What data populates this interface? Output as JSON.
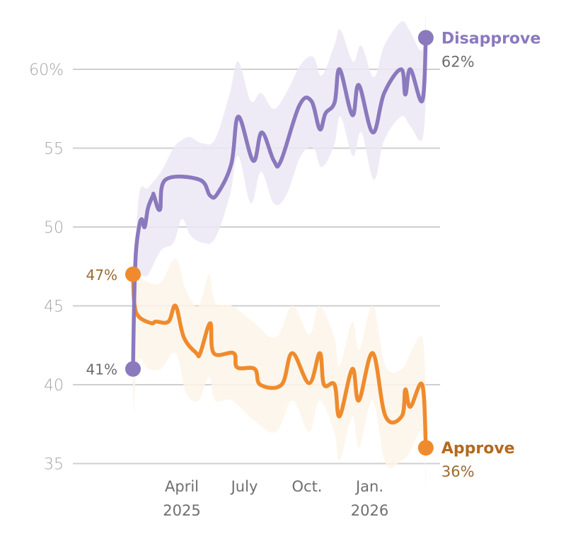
{
  "chart_data": {
    "type": "line",
    "title": "",
    "xlabel": "",
    "ylabel": "",
    "ylim": [
      35,
      63
    ],
    "y_ticks": [
      {
        "value": 60,
        "label": "60%"
      },
      {
        "value": 55,
        "label": "55"
      },
      {
        "value": 50,
        "label": "50"
      },
      {
        "value": 45,
        "label": "45"
      },
      {
        "value": 40,
        "label": "40"
      },
      {
        "value": 35,
        "label": "35"
      }
    ],
    "x_unit": "months since Jan. 2025",
    "xlim": [
      0.4,
      15.2
    ],
    "x_ticks": [
      {
        "value": 3,
        "label": "April",
        "sublabel": "2025"
      },
      {
        "value": 6,
        "label": "July",
        "sublabel": ""
      },
      {
        "value": 9,
        "label": "Oct.",
        "sublabel": ""
      },
      {
        "value": 12,
        "label": "Jan.",
        "sublabel": "2026"
      }
    ],
    "grid": true,
    "legend": "direct labels at line ends (right)",
    "series": [
      {
        "name": "Disapprove",
        "end_label": "62%",
        "start_label": "41%",
        "color": "#8b79be",
        "band_color": "#ece8f5",
        "points": [
          [
            0.66,
            41.0
          ],
          [
            0.72,
            45.5
          ],
          [
            0.8,
            48.4
          ],
          [
            0.95,
            50.0
          ],
          [
            1.08,
            50.5
          ],
          [
            1.22,
            50.0
          ],
          [
            1.38,
            51.2
          ],
          [
            1.62,
            52.0
          ],
          [
            1.66,
            52.0
          ],
          [
            1.95,
            51.1
          ],
          [
            2.22,
            53.0
          ],
          [
            3.85,
            53.0
          ],
          [
            4.35,
            52.0
          ],
          [
            4.7,
            52.1
          ],
          [
            5.37,
            54.0
          ],
          [
            5.71,
            57.0
          ],
          [
            6.42,
            54.2
          ],
          [
            6.83,
            56.0
          ],
          [
            7.41,
            54.2
          ],
          [
            7.75,
            54.2
          ],
          [
            8.63,
            57.7
          ],
          [
            9.2,
            58.0
          ],
          [
            9.61,
            56.2
          ],
          [
            9.88,
            57.2
          ],
          [
            10.32,
            57.9
          ],
          [
            10.56,
            60.0
          ],
          [
            11.17,
            57.1
          ],
          [
            11.48,
            59.0
          ],
          [
            12.15,
            56.0
          ],
          [
            12.7,
            58.5
          ],
          [
            13.51,
            60.0
          ],
          [
            13.71,
            58.4
          ],
          [
            13.95,
            60.0
          ],
          [
            14.52,
            58.0
          ],
          [
            14.69,
            62.0
          ]
        ],
        "band": [
          [
            0.66,
            38.5,
            42.0
          ],
          [
            0.9,
            46.0,
            51.5
          ],
          [
            1.4,
            47.0,
            52.5
          ],
          [
            2.0,
            48.5,
            53.5
          ],
          [
            2.6,
            49.0,
            55.0
          ],
          [
            3.0,
            50.5,
            55.5
          ],
          [
            3.4,
            49.5,
            55.7
          ],
          [
            4.0,
            49.0,
            55.3
          ],
          [
            4.6,
            49.3,
            55.6
          ],
          [
            5.3,
            52.0,
            58.5
          ],
          [
            5.7,
            54.5,
            60.5
          ],
          [
            6.3,
            51.5,
            58.0
          ],
          [
            6.8,
            53.5,
            58.5
          ],
          [
            7.4,
            51.5,
            57.5
          ],
          [
            8.0,
            52.0,
            58.5
          ],
          [
            8.7,
            54.5,
            60.3
          ],
          [
            9.3,
            55.0,
            60.8
          ],
          [
            9.7,
            53.8,
            59.6
          ],
          [
            10.3,
            55.2,
            61.5
          ],
          [
            10.6,
            57.0,
            62.5
          ],
          [
            11.2,
            54.5,
            60.5
          ],
          [
            11.6,
            56.0,
            61.5
          ],
          [
            12.2,
            53.0,
            59.5
          ],
          [
            12.7,
            55.5,
            61.5
          ],
          [
            13.5,
            57.0,
            63.0
          ],
          [
            13.9,
            56.5,
            62.5
          ],
          [
            14.5,
            55.5,
            61.2
          ],
          [
            14.69,
            58.0,
            63.5
          ]
        ]
      },
      {
        "name": "Approve",
        "end_label": "36%",
        "start_label": "47%",
        "color": "#ef8b2c",
        "label_color": "#b3691e",
        "band_color": "#fdf4e9",
        "points": [
          [
            0.66,
            47.0
          ],
          [
            0.73,
            45.1
          ],
          [
            0.95,
            44.3
          ],
          [
            1.54,
            43.9
          ],
          [
            1.76,
            44.0
          ],
          [
            2.36,
            44.0
          ],
          [
            2.7,
            45.0
          ],
          [
            3.1,
            43.0
          ],
          [
            3.7,
            42.0
          ],
          [
            3.88,
            42.0
          ],
          [
            4.36,
            43.9
          ],
          [
            4.53,
            42.0
          ],
          [
            5.48,
            42.0
          ],
          [
            5.65,
            41.1
          ],
          [
            6.49,
            41.0
          ],
          [
            6.76,
            40.0
          ],
          [
            7.78,
            40.0
          ],
          [
            8.29,
            42.0
          ],
          [
            9.1,
            40.1
          ],
          [
            9.61,
            42.0
          ],
          [
            9.81,
            40.0
          ],
          [
            10.32,
            40.0
          ],
          [
            10.56,
            38.0
          ],
          [
            11.17,
            41.0
          ],
          [
            11.48,
            39.0
          ],
          [
            12.15,
            42.0
          ],
          [
            12.76,
            38.0
          ],
          [
            13.54,
            38.0
          ],
          [
            13.71,
            39.7
          ],
          [
            13.95,
            38.6
          ],
          [
            14.52,
            40.0
          ],
          [
            14.69,
            36.0
          ]
        ],
        "band": [
          [
            0.66,
            38.0,
            48.0
          ],
          [
            0.9,
            41.5,
            47.0
          ],
          [
            1.4,
            41.0,
            46.5
          ],
          [
            2.0,
            41.0,
            46.5
          ],
          [
            2.7,
            42.0,
            48.0
          ],
          [
            3.2,
            39.5,
            46.0
          ],
          [
            3.8,
            39.0,
            45.0
          ],
          [
            4.3,
            40.5,
            47.0
          ],
          [
            4.6,
            39.0,
            45.2
          ],
          [
            5.4,
            39.0,
            45.0
          ],
          [
            6.4,
            37.8,
            44.0
          ],
          [
            7.5,
            37.0,
            43.0
          ],
          [
            8.3,
            39.0,
            45.0
          ],
          [
            9.1,
            37.0,
            43.2
          ],
          [
            9.6,
            39.0,
            45.0
          ],
          [
            10.3,
            37.0,
            43.0
          ],
          [
            10.56,
            35.2,
            41.2
          ],
          [
            11.17,
            38.0,
            44.0
          ],
          [
            11.5,
            36.0,
            42.2
          ],
          [
            12.15,
            39.0,
            45.0
          ],
          [
            12.76,
            35.0,
            41.2
          ],
          [
            13.54,
            35.2,
            41.0
          ],
          [
            13.95,
            35.8,
            42.0
          ],
          [
            14.52,
            37.0,
            43.0
          ],
          [
            14.69,
            33.5,
            39.5
          ]
        ]
      }
    ]
  }
}
